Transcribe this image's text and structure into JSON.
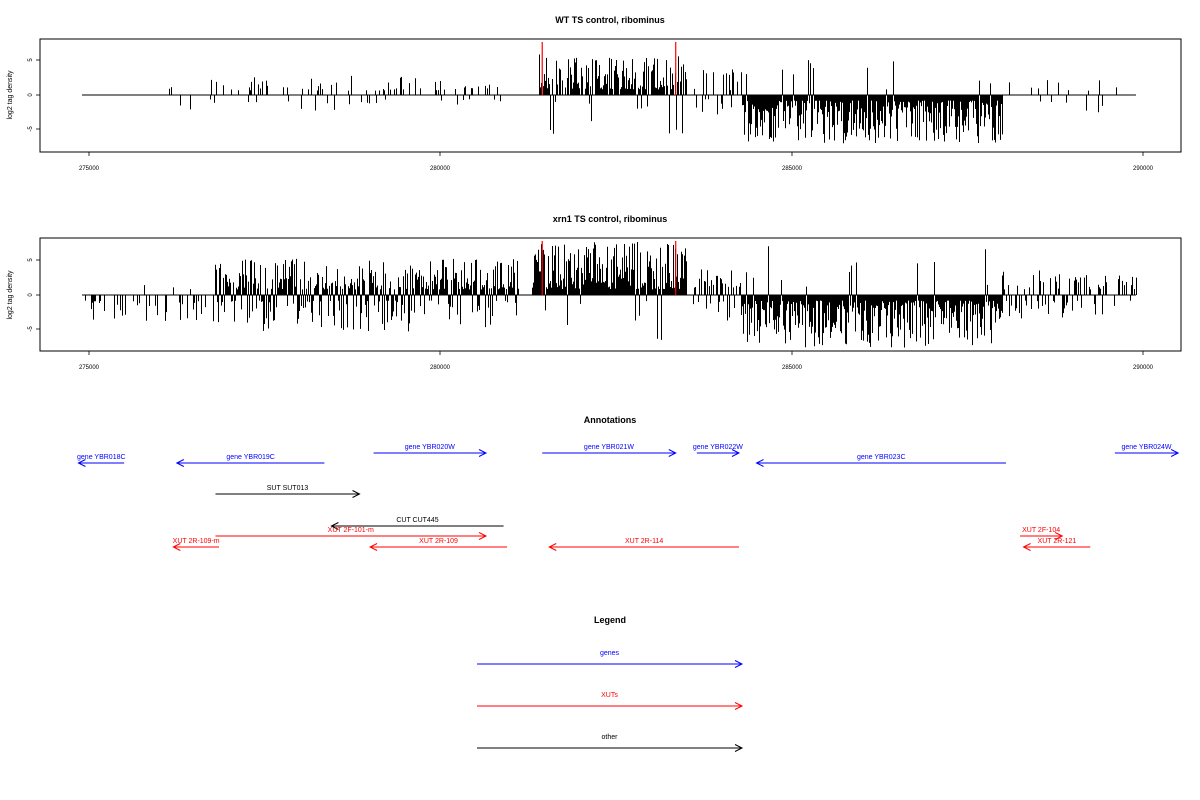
{
  "chart_data": [
    {
      "type": "bar",
      "title": "WT TS control, ribominus",
      "xlabel": "",
      "ylabel": "log2 tag density",
      "xlim": [
        274800,
        290500
      ],
      "ylim": [
        -8,
        8
      ],
      "xticks": [
        "275000",
        "280000",
        "285000",
        "290000"
      ],
      "yticks": [
        "5",
        "0",
        "-5"
      ],
      "axis_range_x": [
        274900,
        289900
      ],
      "markers": [
        281450,
        283350
      ],
      "regions": [
        {
          "x": [
            275300,
            276600
          ],
          "density": 0.04,
          "pos": 0.3,
          "min": 0.8,
          "max": 3.3
        },
        {
          "x": [
            276700,
            280900
          ],
          "density": 0.3,
          "pos": 0.78,
          "min": 0.6,
          "max": 2.8
        },
        {
          "x": [
            281400,
            283500
          ],
          "density": 0.8,
          "pos": 0.92,
          "min": 0.8,
          "max": 5.8
        },
        {
          "x": [
            283600,
            284300
          ],
          "density": 0.45,
          "pos": 0.6,
          "min": 0.6,
          "max": 4.0
        },
        {
          "x": [
            284300,
            288000
          ],
          "density": 1.0,
          "pos": 0.04,
          "min": 0.8,
          "max": 7.0
        },
        {
          "x": [
            288000,
            289900
          ],
          "density": 0.12,
          "pos": 0.6,
          "min": 0.6,
          "max": 2.5
        }
      ]
    },
    {
      "type": "bar",
      "title": "xrn1 TS control, ribominus",
      "xlabel": "",
      "ylabel": "log2 tag density",
      "xlim": [
        274800,
        290500
      ],
      "ylim": [
        -8,
        8
      ],
      "xticks": [
        "275000",
        "280000",
        "285000",
        "290000"
      ],
      "yticks": [
        "5",
        "0",
        "-5"
      ],
      "axis_range_x": [
        274900,
        289900
      ],
      "markers": [
        281450,
        283350
      ],
      "regions": [
        {
          "x": [
            274900,
            276800
          ],
          "density": 0.3,
          "pos": 0.05,
          "min": 0.8,
          "max": 4.0
        },
        {
          "x": [
            276800,
            281100
          ],
          "density": 1.0,
          "pos": 0.7,
          "min": 0.8,
          "max": 5.2
        },
        {
          "x": [
            281300,
            283500
          ],
          "density": 1.0,
          "pos": 0.95,
          "min": 0.8,
          "max": 7.6
        },
        {
          "x": [
            283600,
            284300
          ],
          "density": 0.7,
          "pos": 0.65,
          "min": 0.8,
          "max": 4.0
        },
        {
          "x": [
            284300,
            288000
          ],
          "density": 1.0,
          "pos": 0.04,
          "min": 0.8,
          "max": 7.5
        },
        {
          "x": [
            288000,
            289000
          ],
          "density": 0.6,
          "pos": 0.5,
          "min": 0.8,
          "max": 3.5
        },
        {
          "x": [
            289000,
            289900
          ],
          "density": 0.4,
          "pos": 0.8,
          "min": 0.8,
          "max": 3.0
        }
      ]
    }
  ],
  "annotations": {
    "title": "Annotations",
    "features": [
      {
        "label": "gene YBR018C",
        "start": 275500,
        "end": 274850,
        "row": 1,
        "type": "gene"
      },
      {
        "label": "gene YBR019C",
        "start": 278350,
        "end": 276250,
        "row": 1,
        "type": "gene"
      },
      {
        "label": "gene YBR020W",
        "start": 279050,
        "end": 280650,
        "row": 0,
        "type": "gene"
      },
      {
        "label": "gene YBR021W",
        "start": 281450,
        "end": 283350,
        "row": 0,
        "type": "gene"
      },
      {
        "label": "gene YBR022W",
        "start": 283650,
        "end": 284250,
        "row": 0,
        "type": "gene"
      },
      {
        "label": "gene YBR023C",
        "start": 288050,
        "end": 284500,
        "row": 1,
        "type": "gene"
      },
      {
        "label": "gene YBR024W",
        "start": 289600,
        "end": 290500,
        "row": 0,
        "type": "gene"
      },
      {
        "label": "SUT SUT013",
        "start": 276800,
        "end": 278850,
        "row": 2,
        "type": "other"
      },
      {
        "label": "CUT CUT445",
        "start": 280900,
        "end": 278450,
        "row": 3,
        "type": "other"
      },
      {
        "label": "XUT 2F-101-m",
        "start": 276800,
        "end": 280650,
        "row": 4,
        "type": "xut"
      },
      {
        "label": "XUT 2R-109-m",
        "start": 276850,
        "end": 276200,
        "row": 5,
        "type": "xut"
      },
      {
        "label": "XUT 2R-109",
        "start": 280950,
        "end": 279000,
        "row": 5,
        "type": "xut"
      },
      {
        "label": "XUT 2R-114",
        "start": 284250,
        "end": 281550,
        "row": 5,
        "type": "xut"
      },
      {
        "label": "XUT 2F-104",
        "start": 288250,
        "end": 288850,
        "row": 4,
        "type": "xut"
      },
      {
        "label": "XUT 2R-121",
        "start": 289250,
        "end": 288300,
        "row": 5,
        "type": "xut"
      }
    ]
  },
  "legend": {
    "title": "Legend",
    "items": [
      {
        "label": "genes",
        "type": "gene"
      },
      {
        "label": "XUTs",
        "type": "xut"
      },
      {
        "label": "other",
        "type": "other"
      }
    ]
  },
  "colors": {
    "gene": "#0000ff",
    "xut": "#ff0000",
    "other": "#000000",
    "marker": "#ff0000",
    "bar": "#000000"
  }
}
